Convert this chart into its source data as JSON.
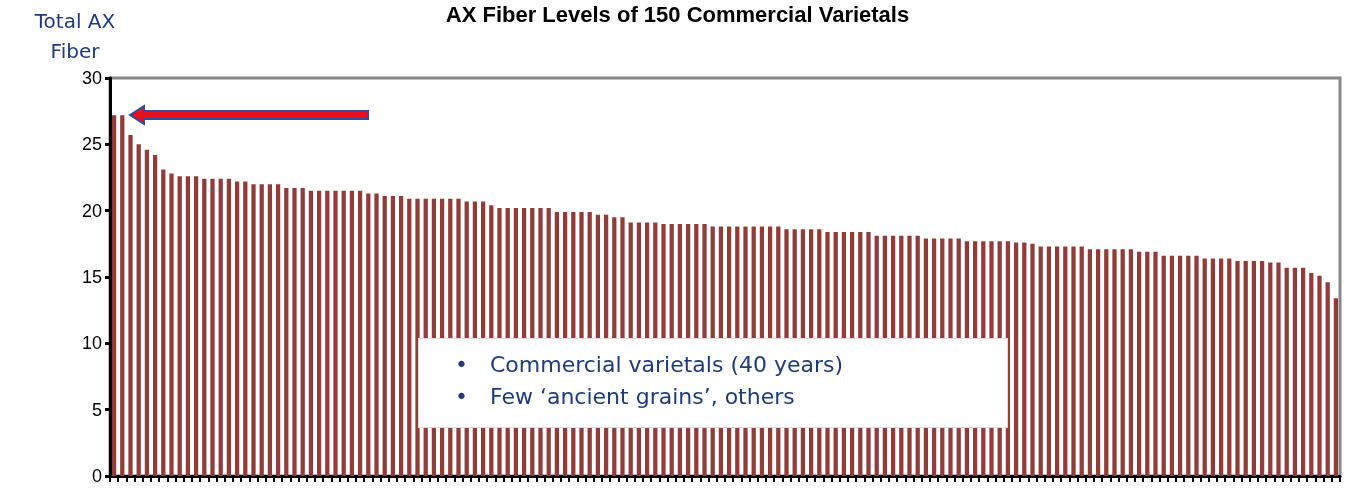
{
  "chart_data": {
    "type": "bar",
    "title": "AX Fiber Levels of 150 Commercial Varietals",
    "ylabel": "Total AX Fiber",
    "categories": [
      null,
      null,
      null,
      null,
      null,
      null,
      null,
      null,
      null,
      null,
      null,
      null,
      null,
      null,
      null,
      null,
      null,
      null,
      null,
      null,
      null,
      null,
      null,
      null,
      null,
      null,
      null,
      null,
      null,
      null,
      null,
      null,
      null,
      null,
      null,
      null,
      null,
      null,
      null,
      null,
      null,
      null,
      null,
      null,
      null,
      null,
      null,
      null,
      null,
      null,
      null,
      null,
      null,
      null,
      null,
      null,
      null,
      null,
      null,
      null,
      null,
      null,
      null,
      null,
      null,
      null,
      null,
      null,
      null,
      null,
      null,
      null,
      null,
      null,
      null,
      null,
      null,
      null,
      null,
      null,
      null,
      null,
      null,
      null,
      null,
      null,
      null,
      null,
      null,
      null,
      null,
      null,
      null,
      null,
      null,
      null,
      null,
      null,
      null,
      null,
      null,
      null,
      null,
      null,
      null,
      null,
      null,
      null,
      null,
      null,
      null,
      null,
      null,
      null,
      null,
      null,
      null,
      null,
      null,
      null,
      null,
      null,
      null,
      null,
      null,
      null,
      null,
      null,
      null,
      null,
      null,
      null,
      null,
      null,
      null,
      null,
      null,
      null,
      null,
      null,
      null,
      null,
      null,
      null,
      null,
      null,
      null,
      null,
      null,
      null
    ],
    "values": [
      27.2,
      27.2,
      25.7,
      25.0,
      24.6,
      24.2,
      23.1,
      22.8,
      22.6,
      22.6,
      22.6,
      22.4,
      22.4,
      22.4,
      22.4,
      22.2,
      22.2,
      22.0,
      22.0,
      22.0,
      22.0,
      21.7,
      21.7,
      21.7,
      21.5,
      21.5,
      21.5,
      21.5,
      21.5,
      21.5,
      21.5,
      21.3,
      21.3,
      21.1,
      21.1,
      21.1,
      20.9,
      20.9,
      20.9,
      20.9,
      20.9,
      20.9,
      20.9,
      20.7,
      20.7,
      20.7,
      20.4,
      20.2,
      20.2,
      20.2,
      20.2,
      20.2,
      20.2,
      20.2,
      19.9,
      19.9,
      19.9,
      19.9,
      19.9,
      19.7,
      19.7,
      19.5,
      19.5,
      19.1,
      19.1,
      19.1,
      19.1,
      19.0,
      19.0,
      19.0,
      19.0,
      19.0,
      19.0,
      18.8,
      18.8,
      18.8,
      18.8,
      18.8,
      18.8,
      18.8,
      18.8,
      18.8,
      18.6,
      18.6,
      18.6,
      18.6,
      18.6,
      18.4,
      18.4,
      18.4,
      18.4,
      18.4,
      18.4,
      18.1,
      18.1,
      18.1,
      18.1,
      18.1,
      18.1,
      17.9,
      17.9,
      17.9,
      17.9,
      17.9,
      17.7,
      17.7,
      17.7,
      17.7,
      17.7,
      17.7,
      17.6,
      17.6,
      17.5,
      17.3,
      17.3,
      17.3,
      17.3,
      17.3,
      17.3,
      17.1,
      17.1,
      17.1,
      17.1,
      17.1,
      17.1,
      16.9,
      16.9,
      16.9,
      16.6,
      16.6,
      16.6,
      16.6,
      16.6,
      16.4,
      16.4,
      16.4,
      16.4,
      16.2,
      16.2,
      16.2,
      16.2,
      16.1,
      16.1,
      15.7,
      15.7,
      15.7,
      15.3,
      15.1,
      14.6,
      13.4
    ],
    "color": "#923c3a",
    "ylim": [
      0,
      30
    ],
    "yticks": [
      0,
      5,
      10,
      15,
      20,
      25,
      30
    ],
    "grid": false,
    "annotations": [
      "•\tCommercial varietals (40 years)",
      "•\tFew ‘ancient grains’, others"
    ]
  }
}
